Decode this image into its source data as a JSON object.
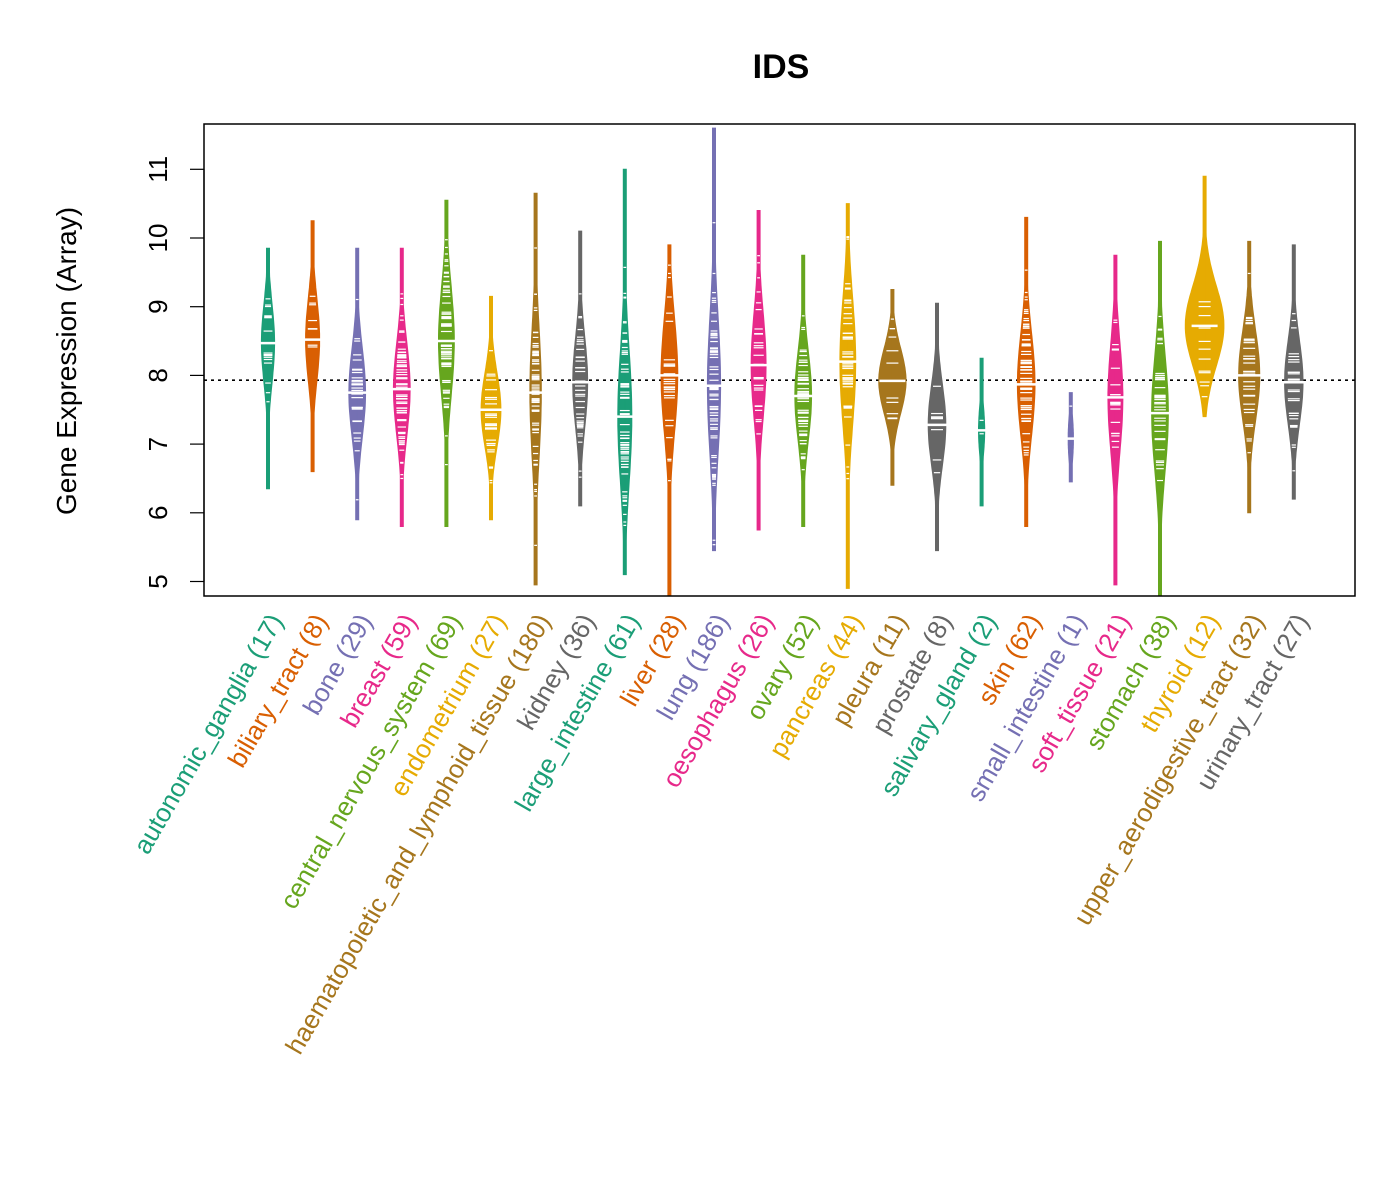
{
  "chart_data": {
    "type": "beeswarm-violin",
    "title": "IDS",
    "xlabel": "",
    "ylabel": "Gene Expression (Array)",
    "ylim": [
      4.8,
      11.65
    ],
    "yticks": [
      5,
      6,
      7,
      8,
      9,
      10,
      11
    ],
    "ytick_labels": [
      "5",
      "6",
      "7",
      "8",
      "9",
      "10",
      "11"
    ],
    "reference_line": 7.93,
    "categories": [
      {
        "name": "autonomic_ganglia",
        "n": 17,
        "label": "autonomic_ganglia (17)",
        "color": "#1B9E77",
        "median": 8.47,
        "min": 6.35,
        "max": 9.85,
        "width": 0.3
      },
      {
        "name": "biliary_tract",
        "n": 8,
        "label": "biliary_tract (8)",
        "color": "#D95F02",
        "median": 8.52,
        "min": 6.6,
        "max": 10.25,
        "width": 0.32
      },
      {
        "name": "bone",
        "n": 29,
        "label": "bone (29)",
        "color": "#7570B3",
        "median": 7.75,
        "min": 5.9,
        "max": 9.85,
        "width": 0.38
      },
      {
        "name": "breast",
        "n": 59,
        "label": "breast (59)",
        "color": "#E7298A",
        "median": 7.8,
        "min": 5.8,
        "max": 9.85,
        "width": 0.38
      },
      {
        "name": "central_nervous_system",
        "n": 69,
        "label": "central_nervous_system (69)",
        "color": "#66A61E",
        "median": 8.5,
        "min": 5.8,
        "max": 10.55,
        "width": 0.36
      },
      {
        "name": "endometrium",
        "n": 27,
        "label": "endometrium (27)",
        "color": "#E6AB02",
        "median": 7.5,
        "min": 5.9,
        "max": 9.15,
        "width": 0.45
      },
      {
        "name": "haematopoietic_and_lymphoid_tissue",
        "n": 180,
        "label": "haematopoietic_and_lymphoid_tissue (180)",
        "color": "#A6761D",
        "median": 7.75,
        "min": 4.95,
        "max": 10.65,
        "width": 0.26
      },
      {
        "name": "kidney",
        "n": 36,
        "label": "kidney (36)",
        "color": "#666666",
        "median": 7.9,
        "min": 6.1,
        "max": 10.1,
        "width": 0.34
      },
      {
        "name": "large_intestine",
        "n": 61,
        "label": "large_intestine (61)",
        "color": "#1B9E77",
        "median": 7.4,
        "min": 5.1,
        "max": 11.0,
        "width": 0.32
      },
      {
        "name": "liver",
        "n": 28,
        "label": "liver (28)",
        "color": "#D95F02",
        "median": 8.0,
        "min": 4.8,
        "max": 9.9,
        "width": 0.38
      },
      {
        "name": "lung",
        "n": 186,
        "label": "lung (186)",
        "color": "#7570B3",
        "median": 7.85,
        "min": 5.45,
        "max": 11.6,
        "width": 0.3
      },
      {
        "name": "oesophagus",
        "n": 26,
        "label": "oesophagus (26)",
        "color": "#E7298A",
        "median": 8.15,
        "min": 5.75,
        "max": 10.4,
        "width": 0.34
      },
      {
        "name": "ovary",
        "n": 52,
        "label": "ovary (52)",
        "color": "#66A61E",
        "median": 7.7,
        "min": 5.8,
        "max": 9.75,
        "width": 0.38
      },
      {
        "name": "pancreas",
        "n": 44,
        "label": "pancreas (44)",
        "color": "#E6AB02",
        "median": 8.2,
        "min": 4.9,
        "max": 10.5,
        "width": 0.36
      },
      {
        "name": "pleura",
        "n": 11,
        "label": "pleura (11)",
        "color": "#A6761D",
        "median": 7.92,
        "min": 6.4,
        "max": 9.25,
        "width": 0.62
      },
      {
        "name": "prostate",
        "n": 8,
        "label": "prostate (8)",
        "color": "#666666",
        "median": 7.28,
        "min": 5.45,
        "max": 9.05,
        "width": 0.4
      },
      {
        "name": "salivary_gland",
        "n": 2,
        "label": "salivary_gland (2)",
        "color": "#1B9E77",
        "median": 7.2,
        "min": 6.1,
        "max": 8.25,
        "width": 0.14
      },
      {
        "name": "skin",
        "n": 62,
        "label": "skin (62)",
        "color": "#D95F02",
        "median": 7.87,
        "min": 5.8,
        "max": 10.3,
        "width": 0.4
      },
      {
        "name": "small_intestine",
        "n": 1,
        "label": "small_intestine (1)",
        "color": "#7570B3",
        "median": 7.08,
        "min": 6.45,
        "max": 7.75,
        "width": 0.12
      },
      {
        "name": "soft_tissue",
        "n": 21,
        "label": "soft_tissue (21)",
        "color": "#E7298A",
        "median": 7.68,
        "min": 4.95,
        "max": 9.75,
        "width": 0.34
      },
      {
        "name": "stomach",
        "n": 38,
        "label": "stomach (38)",
        "color": "#66A61E",
        "median": 7.45,
        "min": 4.8,
        "max": 9.95,
        "width": 0.38
      },
      {
        "name": "thyroid",
        "n": 12,
        "label": "thyroid (12)",
        "color": "#E6AB02",
        "median": 8.72,
        "min": 7.4,
        "max": 10.9,
        "width": 0.88
      },
      {
        "name": "upper_aerodigestive_tract",
        "n": 32,
        "label": "upper_aerodigestive_tract (32)",
        "color": "#A6761D",
        "median": 8.0,
        "min": 6.0,
        "max": 9.95,
        "width": 0.48
      },
      {
        "name": "urinary_tract",
        "n": 27,
        "label": "urinary_tract (27)",
        "color": "#666666",
        "median": 7.9,
        "min": 6.2,
        "max": 9.9,
        "width": 0.42
      }
    ]
  }
}
